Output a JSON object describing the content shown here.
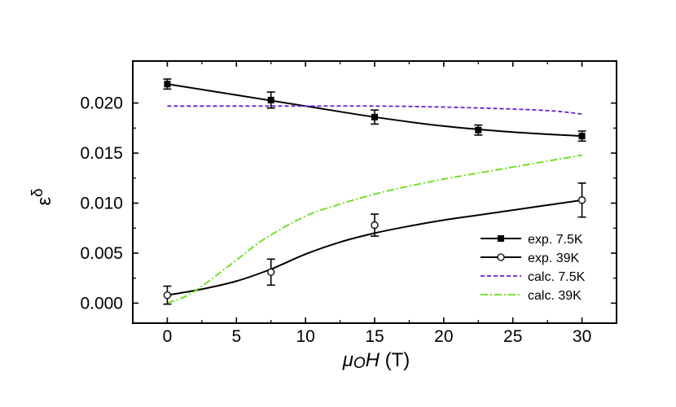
{
  "chart_data": {
    "type": "line",
    "title": "",
    "xlabel_mu": "μ",
    "xlabel_sub": "O",
    "xlabel_var": "H",
    "xlabel_unit": " (T)",
    "ylabel_base": "ε",
    "ylabel_sup": "δ",
    "xlim": [
      -2.5,
      32.5
    ],
    "ylim": [
      -0.002,
      0.0242
    ],
    "x_ticks": [
      0,
      5,
      10,
      15,
      20,
      25,
      30
    ],
    "x_tick_labels": [
      "0",
      "5",
      "10",
      "15",
      "20",
      "25",
      "30"
    ],
    "y_ticks": [
      0.0,
      0.005,
      0.01,
      0.015,
      0.02
    ],
    "y_tick_labels": [
      "0.000",
      "0.005",
      "0.010",
      "0.015",
      "0.020"
    ],
    "legend_position": "bottom-right",
    "series": [
      {
        "name": "exp. 7.5K",
        "kind": "points",
        "marker": "filled-square",
        "color": "#000000",
        "x": [
          0,
          7.5,
          15,
          22.5,
          30
        ],
        "y": [
          0.0219,
          0.0203,
          0.0186,
          0.0173,
          0.0167
        ],
        "err": [
          0.0005,
          0.0008,
          0.0007,
          0.0005,
          0.0005
        ]
      },
      {
        "name": "exp. 7.5K fit",
        "kind": "line",
        "style": "solid",
        "color": "#000000",
        "x": [
          0,
          5,
          10,
          15,
          20,
          25,
          30
        ],
        "y": [
          0.0219,
          0.0208,
          0.0197,
          0.0186,
          0.0177,
          0.0171,
          0.0167
        ]
      },
      {
        "name": "exp. 39K",
        "kind": "points",
        "marker": "open-circle",
        "color": "#000000",
        "x": [
          0,
          7.5,
          15,
          30
        ],
        "y": [
          0.0008,
          0.0031,
          0.0078,
          0.0103
        ],
        "err": [
          0.0009,
          0.0013,
          0.0011,
          0.0017
        ]
      },
      {
        "name": "exp. 39K fit",
        "kind": "line",
        "style": "solid",
        "color": "#000000",
        "x": [
          0,
          2.5,
          5,
          7.5,
          10,
          12.5,
          15,
          17.5,
          20,
          22.5,
          25,
          27.5,
          30
        ],
        "y": [
          0.0008,
          0.0014,
          0.0022,
          0.0034,
          0.0049,
          0.0061,
          0.007,
          0.0077,
          0.0083,
          0.0088,
          0.0093,
          0.0098,
          0.0103
        ]
      },
      {
        "name": "calc. 7.5K",
        "kind": "line",
        "style": "dashed",
        "color": "#6a1fd8",
        "x": [
          0,
          5,
          10,
          15,
          20,
          25,
          28,
          30
        ],
        "y": [
          0.0197,
          0.0197,
          0.0197,
          0.0197,
          0.0196,
          0.0194,
          0.0192,
          0.0189
        ]
      },
      {
        "name": "calc. 39K",
        "kind": "line",
        "style": "dashdot",
        "color": "#66dd11",
        "x": [
          0,
          1.5,
          3,
          5,
          7,
          10,
          12.5,
          15,
          17.5,
          20,
          22.5,
          25,
          27.5,
          30
        ],
        "y": [
          0.0,
          0.0008,
          0.0022,
          0.0043,
          0.0064,
          0.0087,
          0.0099,
          0.0109,
          0.0117,
          0.0124,
          0.013,
          0.0136,
          0.0142,
          0.0148
        ]
      }
    ],
    "legend": [
      {
        "label": "exp. 7.5K",
        "series_index": 0
      },
      {
        "label": "exp. 39K",
        "series_index": 2
      },
      {
        "label": "calc. 7.5K",
        "series_index": 4
      },
      {
        "label": "calc. 39K",
        "series_index": 5
      }
    ]
  }
}
